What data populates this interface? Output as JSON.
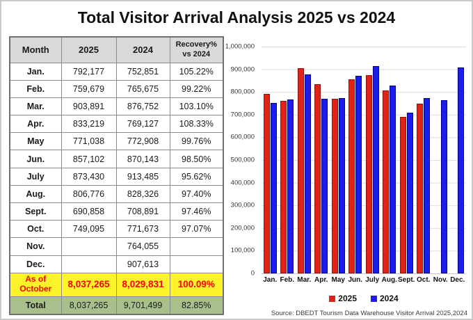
{
  "title": "Total Visitor Arrival Analysis 2025 vs 2024",
  "table": {
    "headers": {
      "month": "Month",
      "y2025": "2025",
      "y2024": "2024",
      "recovery_line1": "Recovery%",
      "recovery_line2": "vs 2024"
    },
    "rows": [
      {
        "month": "Jan.",
        "y2025": "792,177",
        "y2024": "752,851",
        "recovery": "105.22%"
      },
      {
        "month": "Feb.",
        "y2025": "759,679",
        "y2024": "765,675",
        "recovery": "99.22%"
      },
      {
        "month": "Mar.",
        "y2025": "903,891",
        "y2024": "876,752",
        "recovery": "103.10%"
      },
      {
        "month": "Apr.",
        "y2025": "833,219",
        "y2024": "769,127",
        "recovery": "108.33%"
      },
      {
        "month": "May",
        "y2025": "771,038",
        "y2024": "772,908",
        "recovery": "99.76%"
      },
      {
        "month": "Jun.",
        "y2025": "857,102",
        "y2024": "870,143",
        "recovery": "98.50%"
      },
      {
        "month": "July",
        "y2025": "873,430",
        "y2024": "913,485",
        "recovery": "95.62%"
      },
      {
        "month": "Aug.",
        "y2025": "806,776",
        "y2024": "828,326",
        "recovery": "97.40%"
      },
      {
        "month": "Sept.",
        "y2025": "690,858",
        "y2024": "708,891",
        "recovery": "97.46%"
      },
      {
        "month": "Oct.",
        "y2025": "749,095",
        "y2024": "771,673",
        "recovery": "97.07%"
      },
      {
        "month": "Nov.",
        "y2025": "",
        "y2024": "764,055",
        "recovery": ""
      },
      {
        "month": "Dec.",
        "y2025": "",
        "y2024": "907,613",
        "recovery": ""
      }
    ],
    "summary_rows": [
      {
        "month": "As of October",
        "y2025": "8,037,265",
        "y2024": "8,029,831",
        "recovery": "100.09%",
        "variant": "as-of"
      },
      {
        "month": "Total",
        "y2025": "8,037,265",
        "y2024": "9,701,499",
        "recovery": "82.85%",
        "variant": "total"
      }
    ]
  },
  "chart_data": {
    "type": "bar",
    "title": "",
    "categories": [
      "Jan.",
      "Feb.",
      "Mar.",
      "Apr.",
      "May",
      "Jun.",
      "July",
      "Aug.",
      "Sept.",
      "Oct.",
      "Nov.",
      "Dec."
    ],
    "series": [
      {
        "name": "2025",
        "color": "#e02318",
        "border_color": "#8f1007",
        "values": [
          792177,
          759679,
          903891,
          833219,
          771038,
          857102,
          873430,
          806776,
          690858,
          749095,
          null,
          null
        ]
      },
      {
        "name": "2024",
        "color": "#1c1cec",
        "border_color": "#00008f",
        "values": [
          752851,
          765675,
          876752,
          769127,
          772908,
          870143,
          913485,
          828326,
          708891,
          771673,
          764055,
          907613
        ]
      }
    ],
    "ylim": [
      0,
      1000000
    ],
    "y_tick_interval": 100000,
    "grid": true,
    "legend_position": "bottom"
  },
  "legend": {
    "items": [
      {
        "label": "2025",
        "color": "#e02318"
      },
      {
        "label": "2024",
        "color": "#1c1cec"
      }
    ]
  },
  "source": "Source: DBEDT Tourism Data Warehouse Visitor Arrival 2025,2024",
  "colors": {
    "header_bg": "#d9d9d9",
    "as_of_bg": "#fdf32b",
    "as_of_text": "#fe0000",
    "total_bg": "#a9c08c",
    "bar_red": "#e02318",
    "bar_blue": "#1c1cec",
    "gridline": "#dcdcdc"
  }
}
